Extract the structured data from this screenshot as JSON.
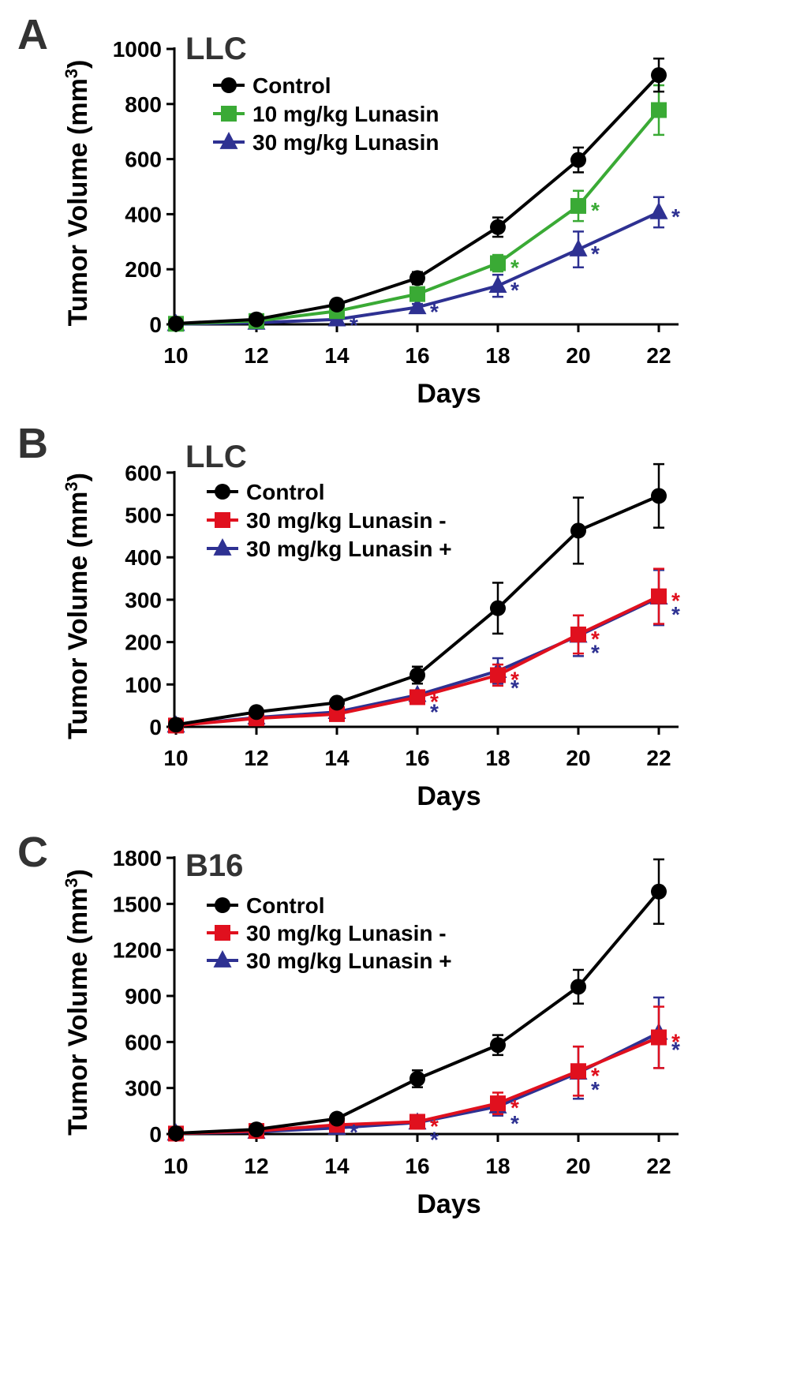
{
  "colors": {
    "control": "#000000",
    "green": "#3aaa35",
    "blue": "#2e3192",
    "red": "#e0101e"
  },
  "chart_data": [
    {
      "panel": "A",
      "type": "line",
      "title": "LLC",
      "xlabel": "Days",
      "ylabel": "Tumor Volume (mm",
      "ylabel_sup": "3",
      "ylabel_close": ")",
      "x": [
        10,
        12,
        14,
        16,
        18,
        20,
        22
      ],
      "xlim": [
        10,
        22
      ],
      "ylim": [
        0,
        1000
      ],
      "yticks": [
        0,
        200,
        400,
        600,
        800,
        1000
      ],
      "legend_position": "top-left",
      "series": [
        {
          "name": "Control",
          "color": "#000000",
          "marker": "circle",
          "values": [
            3,
            18,
            72,
            168,
            353,
            597,
            905
          ],
          "errors": [
            3,
            5,
            10,
            22,
            35,
            45,
            60
          ],
          "stars": [
            false,
            false,
            false,
            false,
            false,
            false,
            false
          ]
        },
        {
          "name": "10 mg/kg Lunasin",
          "color": "#3aaa35",
          "marker": "square",
          "values": [
            2,
            12,
            48,
            110,
            222,
            430,
            778
          ],
          "errors": [
            2,
            4,
            8,
            15,
            30,
            55,
            90
          ],
          "stars": [
            false,
            false,
            false,
            false,
            true,
            true,
            false
          ]
        },
        {
          "name": "30 mg/kg Lunasin",
          "color": "#2e3192",
          "marker": "triangle",
          "values": [
            1,
            6,
            18,
            62,
            140,
            272,
            407
          ],
          "errors": [
            1,
            3,
            6,
            12,
            40,
            65,
            55
          ],
          "stars": [
            false,
            false,
            true,
            true,
            true,
            true,
            true
          ]
        }
      ]
    },
    {
      "panel": "B",
      "type": "line",
      "title": "LLC",
      "xlabel": "Days",
      "ylabel": "Tumor Volume (mm",
      "ylabel_sup": "3",
      "ylabel_close": ")",
      "x": [
        10,
        12,
        14,
        16,
        18,
        20,
        22
      ],
      "xlim": [
        10,
        22
      ],
      "ylim": [
        0,
        650
      ],
      "yticks": [
        0,
        100,
        200,
        300,
        400,
        500,
        600
      ],
      "legend_position": "top-left",
      "series": [
        {
          "name": "Control",
          "color": "#000000",
          "marker": "circle",
          "values": [
            5,
            35,
            57,
            122,
            280,
            463,
            545
          ],
          "errors": [
            3,
            5,
            7,
            20,
            60,
            78,
            75
          ],
          "stars": [
            false,
            false,
            false,
            false,
            false,
            false,
            false
          ]
        },
        {
          "name": "30 mg/kg Lunasin -",
          "color": "#e0101e",
          "marker": "square",
          "values": [
            3,
            20,
            30,
            70,
            122,
            218,
            308
          ],
          "errors": [
            2,
            4,
            5,
            10,
            25,
            45,
            65
          ],
          "stars": [
            false,
            false,
            false,
            true,
            true,
            true,
            true
          ]
        },
        {
          "name": "30 mg/kg Lunasin +",
          "color": "#2e3192",
          "marker": "triangle",
          "values": [
            3,
            22,
            35,
            75,
            132,
            215,
            305
          ],
          "errors": [
            2,
            4,
            5,
            10,
            30,
            48,
            65
          ],
          "stars": [
            false,
            false,
            false,
            true,
            true,
            true,
            true
          ]
        }
      ]
    },
    {
      "panel": "C",
      "type": "line",
      "title": "B16",
      "xlabel": "Days",
      "ylabel": "Tumor Volume (mm",
      "ylabel_sup": "3",
      "ylabel_close": ")",
      "x": [
        10,
        12,
        14,
        16,
        18,
        20,
        22
      ],
      "xlim": [
        10,
        22
      ],
      "ylim": [
        0,
        1800
      ],
      "yticks": [
        0,
        300,
        600,
        900,
        1200,
        1500,
        1800
      ],
      "legend_position": "top-left",
      "series": [
        {
          "name": "Control",
          "color": "#000000",
          "marker": "circle",
          "values": [
            5,
            30,
            100,
            360,
            580,
            960,
            1580
          ],
          "errors": [
            4,
            6,
            15,
            55,
            65,
            110,
            210
          ],
          "stars": [
            false,
            false,
            false,
            false,
            false,
            false,
            false
          ]
        },
        {
          "name": "30 mg/kg Lunasin -",
          "color": "#e0101e",
          "marker": "square",
          "values": [
            3,
            20,
            60,
            80,
            200,
            410,
            630
          ],
          "errors": [
            3,
            5,
            10,
            15,
            70,
            160,
            200
          ],
          "stars": [
            false,
            false,
            false,
            true,
            true,
            true,
            true
          ]
        },
        {
          "name": "30 mg/kg Lunasin +",
          "color": "#2e3192",
          "marker": "triangle",
          "values": [
            3,
            15,
            40,
            75,
            180,
            400,
            660
          ],
          "errors": [
            3,
            5,
            8,
            12,
            60,
            170,
            230
          ],
          "stars": [
            false,
            false,
            true,
            true,
            true,
            true,
            true
          ]
        }
      ]
    }
  ]
}
